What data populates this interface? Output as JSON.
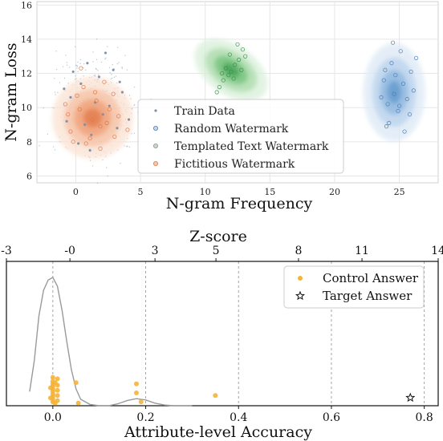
{
  "chart_data": [
    {
      "type": "scatter",
      "xlabel": "N-gram Frequency",
      "ylabel": "N-gram Loss",
      "xlim": [
        -3,
        28
      ],
      "ylim": [
        5.6,
        16.2
      ],
      "xticks": [
        0,
        5,
        10,
        15,
        20,
        25
      ],
      "yticks": [
        6,
        8,
        10,
        12,
        14,
        16
      ],
      "grid": true,
      "legend_position": "bottom-center",
      "series": [
        {
          "name": "Train Data",
          "color": "#7f8fa6",
          "cluster": {
            "cx": 1.5,
            "cy": 9.9,
            "sx": 1.5,
            "sy": 1.4
          },
          "density": "none",
          "points": [
            [
              0.4,
              11.4
            ],
            [
              1.8,
              11.8
            ],
            [
              -0.7,
              9.2
            ],
            [
              2.6,
              10.1
            ],
            [
              3.2,
              8.8
            ],
            [
              0.9,
              12.6
            ],
            [
              -0.4,
              10.6
            ],
            [
              1.2,
              8.4
            ],
            [
              2.1,
              9.6
            ],
            [
              3.6,
              10.9
            ],
            [
              0.2,
              7.9
            ],
            [
              2.9,
              12.2
            ],
            [
              1.5,
              10.3
            ],
            [
              -0.9,
              11.1
            ],
            [
              4.1,
              9.3
            ],
            [
              0.7,
              9.0
            ],
            [
              2.3,
              13.2
            ],
            [
              1.1,
              7.5
            ],
            [
              3.4,
              11.5
            ],
            [
              -0.2,
              12.1
            ]
          ]
        },
        {
          "name": "Random Watermark",
          "color": "#4a7bb5",
          "cluster": {
            "cx": 24.6,
            "cy": 10.9,
            "sx": 1.0,
            "sy": 1.2
          },
          "density": "blue",
          "points": [
            [
              24.6,
              10.8
            ],
            [
              25.3,
              11.4
            ],
            [
              24.1,
              10.2
            ],
            [
              25.9,
              12.1
            ],
            [
              23.8,
              11.6
            ],
            [
              24.9,
              9.8
            ],
            [
              25.6,
              10.5
            ],
            [
              24.4,
              12.6
            ],
            [
              26.1,
              11.0
            ],
            [
              23.6,
              10.6
            ],
            [
              25.1,
              13.3
            ],
            [
              24.2,
              9.1
            ],
            [
              25.4,
              8.6
            ],
            [
              24.7,
              11.9
            ],
            [
              26.3,
              12.9
            ],
            [
              23.9,
              12.2
            ],
            [
              25.0,
              10.1
            ],
            [
              24.5,
              13.8
            ],
            [
              25.8,
              9.6
            ],
            [
              24.0,
              8.9
            ]
          ]
        },
        {
          "name": "Templated Text Watermark",
          "color": "#3d8c4e",
          "cluster": {
            "cx": 12.0,
            "cy": 12.2,
            "sx": 0.8,
            "sy": 1.0
          },
          "density": "green",
          "points": [
            [
              12.0,
              12.1
            ],
            [
              12.6,
              12.8
            ],
            [
              11.4,
              11.6
            ],
            [
              12.9,
              13.4
            ],
            [
              11.1,
              11.2
            ],
            [
              12.3,
              12.5
            ],
            [
              11.8,
              11.9
            ],
            [
              13.1,
              13.0
            ],
            [
              11.6,
              12.3
            ],
            [
              12.5,
              13.7
            ],
            [
              10.9,
              10.9
            ],
            [
              12.2,
              11.7
            ],
            [
              11.3,
              12.0
            ],
            [
              12.8,
              12.2
            ],
            [
              11.9,
              13.1
            ]
          ]
        },
        {
          "name": "Fictitious Watermark",
          "color": "#e0784a",
          "cluster": {
            "cx": 1.3,
            "cy": 9.4,
            "sx": 1.3,
            "sy": 1.0
          },
          "density": "orange",
          "points": [
            [
              0.3,
              9.9
            ],
            [
              1.6,
              10.4
            ],
            [
              2.4,
              9.1
            ],
            [
              -0.4,
              8.6
            ],
            [
              1.1,
              8.2
            ],
            [
              2.9,
              10.8
            ],
            [
              0.6,
              11.2
            ],
            [
              -0.6,
              9.6
            ],
            [
              1.9,
              8.9
            ],
            [
              3.3,
              9.5
            ],
            [
              0.1,
              10.7
            ],
            [
              2.2,
              11.5
            ],
            [
              1.3,
              9.3
            ],
            [
              -0.2,
              8.0
            ],
            [
              4.0,
              8.7
            ],
            [
              0.8,
              7.9
            ],
            [
              2.6,
              9.9
            ],
            [
              1.5,
              10.9
            ],
            [
              -0.8,
              10.2
            ],
            [
              3.0,
              8.3
            ],
            [
              0.4,
              12.3
            ],
            [
              1.9,
              7.6
            ]
          ]
        }
      ]
    },
    {
      "type": "scatter",
      "xlabel": "Attribute-level Accuracy",
      "x2label": "Z-score",
      "xlim": [
        -0.1,
        0.83
      ],
      "ylim": [
        0,
        1
      ],
      "xticks": [
        0.0,
        0.2,
        0.4,
        0.6,
        0.8
      ],
      "xtick_labels": [
        "0.0",
        "0.2",
        "0.4",
        "0.6",
        "0.8"
      ],
      "x2ticks": [
        -3,
        -0.5,
        2.85,
        5.25,
        8.5,
        11,
        14
      ],
      "x2tick_labels": [
        "-3",
        "-0",
        "3",
        "5",
        "8",
        "11",
        "14"
      ],
      "grid": "vertical dashed",
      "legend_position": "top-right",
      "series": [
        {
          "name": "Control Answer",
          "color": "#f5b436",
          "marker": "circle",
          "points": [
            [
              0.0,
              0.22
            ],
            [
              0.0,
              0.19
            ],
            [
              0.0,
              0.17
            ],
            [
              0.0,
              0.15
            ],
            [
              0.0,
              0.13
            ],
            [
              0.0,
              0.11
            ],
            [
              0.0,
              0.09
            ],
            [
              0.0,
              0.07
            ],
            [
              0.0,
              0.05
            ],
            [
              0.0,
              0.03
            ],
            [
              0.01,
              0.21
            ],
            [
              0.01,
              0.16
            ],
            [
              0.01,
              0.12
            ],
            [
              0.01,
              0.08
            ],
            [
              0.01,
              0.04
            ],
            [
              -0.005,
              0.14
            ],
            [
              -0.005,
              0.06
            ],
            [
              0.005,
              0.18
            ],
            [
              0.005,
              0.02
            ],
            [
              0.05,
              0.18
            ],
            [
              0.055,
              0.02
            ],
            [
              0.18,
              0.17
            ],
            [
              0.18,
              0.1
            ],
            [
              0.19,
              0.03
            ],
            [
              0.35,
              0.08
            ]
          ]
        },
        {
          "name": "Target Answer",
          "color": "#ffffff",
          "stroke": "#111111",
          "marker": "star",
          "points": [
            [
              0.77,
              0.05
            ]
          ]
        }
      ],
      "density_curve": {
        "color": "#9a9a9a",
        "x": [
          -0.05,
          -0.04,
          -0.03,
          -0.02,
          -0.01,
          0.0,
          0.01,
          0.02,
          0.03,
          0.04,
          0.05,
          0.06,
          0.08,
          0.1,
          0.12,
          0.14,
          0.16,
          0.18,
          0.2,
          0.22,
          0.24,
          0.26,
          0.28
        ],
        "y": [
          0.11,
          0.35,
          0.7,
          0.9,
          0.98,
          1.0,
          0.93,
          0.74,
          0.5,
          0.28,
          0.13,
          0.05,
          0.01,
          0.0,
          0.0,
          0.015,
          0.04,
          0.055,
          0.045,
          0.02,
          0.006,
          0.0,
          0.0
        ]
      }
    }
  ]
}
